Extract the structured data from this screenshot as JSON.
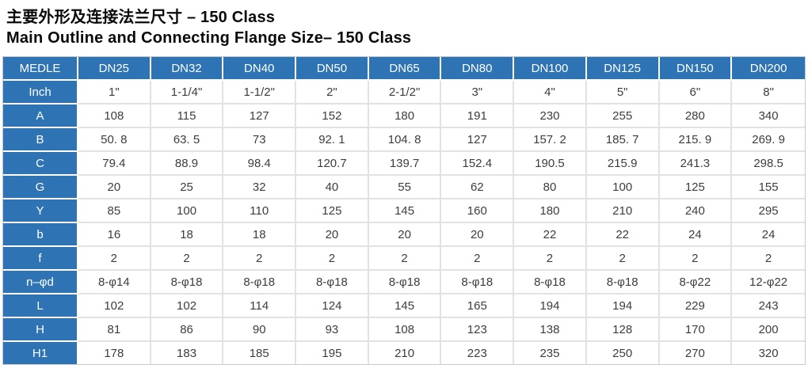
{
  "title": {
    "zh": "主要外形及连接法兰尺寸 – 150 Class",
    "en": "Main Outline and Connecting Flange Size– 150 Class"
  },
  "colors": {
    "header_blue": "#2e73b4",
    "label_text": "#ffffff",
    "data_text": "#3d3d3d",
    "cell_border": "#e2e2e2",
    "outer_border": "#c9c9c9"
  },
  "table": {
    "columns": [
      "MEDLE",
      "DN25",
      "DN32",
      "DN40",
      "DN50",
      "DN65",
      "DN80",
      "DN100",
      "DN125",
      "DN150",
      "DN200"
    ],
    "rows": [
      {
        "label": "Inch",
        "values": [
          "1\"",
          "1-1/4\"",
          "1-1/2\"",
          "2\"",
          "2-1/2\"",
          "3\"",
          "4\"",
          "5\"",
          "6\"",
          "8\""
        ]
      },
      {
        "label": "A",
        "values": [
          "108",
          "115",
          "127",
          "152",
          "180",
          "191",
          "230",
          "255",
          "280",
          "340"
        ]
      },
      {
        "label": "B",
        "values": [
          "50. 8",
          "63. 5",
          "73",
          "92. 1",
          "104. 8",
          "127",
          "157. 2",
          "185. 7",
          "215. 9",
          "269. 9"
        ]
      },
      {
        "label": "C",
        "values": [
          "79.4",
          "88.9",
          "98.4",
          "120.7",
          "139.7",
          "152.4",
          "190.5",
          "215.9",
          "241.3",
          "298.5"
        ]
      },
      {
        "label": "G",
        "values": [
          "20",
          "25",
          "32",
          "40",
          "55",
          "62",
          "80",
          "100",
          "125",
          "155"
        ]
      },
      {
        "label": "Y",
        "values": [
          "85",
          "100",
          "110",
          "125",
          "145",
          "160",
          "180",
          "210",
          "240",
          "295"
        ]
      },
      {
        "label": "b",
        "values": [
          "16",
          "18",
          "18",
          "20",
          "20",
          "20",
          "22",
          "22",
          "24",
          "24"
        ]
      },
      {
        "label": "f",
        "values": [
          "2",
          "2",
          "2",
          "2",
          "2",
          "2",
          "2",
          "2",
          "2",
          "2"
        ]
      },
      {
        "label": "n–φd",
        "values": [
          "8-φ14",
          "8-φ18",
          "8-φ18",
          "8-φ18",
          "8-φ18",
          "8-φ18",
          "8-φ18",
          "8-φ18",
          "8-φ22",
          "12-φ22"
        ]
      },
      {
        "label": "L",
        "values": [
          "102",
          "102",
          "114",
          "124",
          "145",
          "165",
          "194",
          "194",
          "229",
          "243"
        ]
      },
      {
        "label": "H",
        "values": [
          "81",
          "86",
          "90",
          "93",
          "108",
          "123",
          "138",
          "128",
          "170",
          "200"
        ]
      },
      {
        "label": "H1",
        "values": [
          "178",
          "183",
          "185",
          "195",
          "210",
          "223",
          "235",
          "250",
          "270",
          "320"
        ]
      }
    ]
  }
}
